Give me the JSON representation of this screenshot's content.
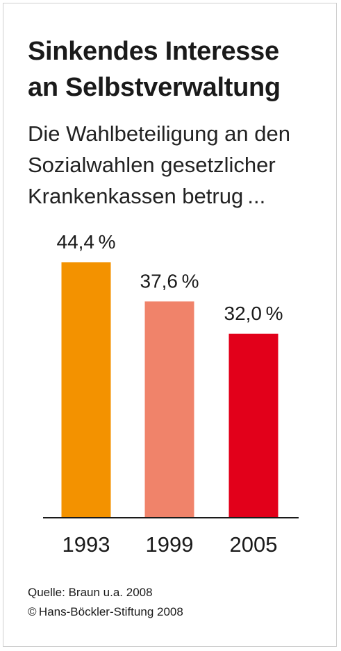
{
  "title": [
    "Sinkendes Interesse",
    "an Selbstverwaltung"
  ],
  "subtitle": [
    "Die Wahlbeteiligung an den",
    "Sozialwahlen gesetzlicher",
    "Krankenkassen betrug ..."
  ],
  "source": [
    "Quelle: Braun u.a. 2008",
    "© Hans-Böckler-Stiftung 2008"
  ],
  "chart_data": {
    "type": "bar",
    "title": "Sinkendes Interesse an Selbstverwaltung",
    "categories": [
      "1993",
      "1999",
      "2005"
    ],
    "values": [
      44.4,
      37.6,
      32.0
    ],
    "value_labels": [
      "44,4 %",
      "37,6 %",
      "32,0 %"
    ],
    "colors": [
      "#f39200",
      "#f0836a",
      "#e2001a"
    ],
    "xlabel": "",
    "ylabel": "",
    "ylim": [
      0,
      44.4
    ],
    "grid": false
  }
}
